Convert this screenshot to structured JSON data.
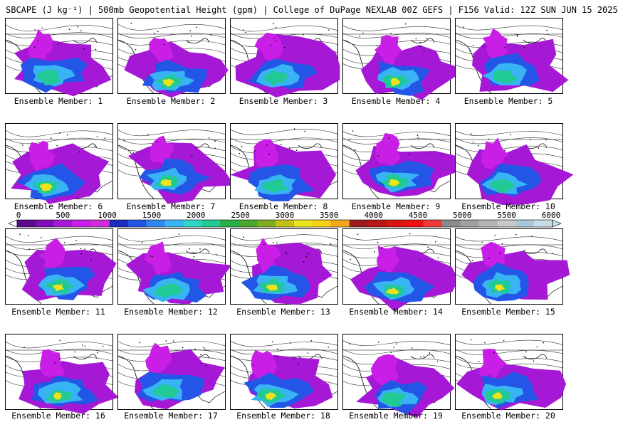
{
  "header": {
    "title": "SBCAPE (J kg⁻¹) | 500mb Geopotential Height (gpm) | College of DuPage NEXLAB 00Z GEFS | F156 Valid: 12Z SUN JUN 15 2025"
  },
  "members": [
    {
      "label": "Ensemble Member: 1"
    },
    {
      "label": "Ensemble Member: 2"
    },
    {
      "label": "Ensemble Member: 3"
    },
    {
      "label": "Ensemble Member: 4"
    },
    {
      "label": "Ensemble Member: 5"
    },
    {
      "label": "Ensemble Member: 6"
    },
    {
      "label": "Ensemble Member: 7"
    },
    {
      "label": "Ensemble Member: 8"
    },
    {
      "label": "Ensemble Member: 9"
    },
    {
      "label": "Ensemble Member: 10"
    },
    {
      "label": "Ensemble Member: 11"
    },
    {
      "label": "Ensemble Member: 12"
    },
    {
      "label": "Ensemble Member: 13"
    },
    {
      "label": "Ensemble Member: 14"
    },
    {
      "label": "Ensemble Member: 15"
    },
    {
      "label": "Ensemble Member: 16"
    },
    {
      "label": "Ensemble Member: 17"
    },
    {
      "label": "Ensemble Member: 18"
    },
    {
      "label": "Ensemble Member: 19"
    },
    {
      "label": "Ensemble Member: 20"
    }
  ],
  "colorbar": {
    "ticks": [
      "0",
      "500",
      "1000",
      "1500",
      "2000",
      "2500",
      "3000",
      "3500",
      "4000",
      "4500",
      "5000",
      "5500",
      "6000"
    ],
    "colors": [
      "#5a0a8c",
      "#7d0fb5",
      "#a418d6",
      "#c81ee6",
      "#d22cd8",
      "#1a2bbf",
      "#2356e6",
      "#2f88f0",
      "#38b4f5",
      "#2ed6c8",
      "#21c994",
      "#27b04a",
      "#4aa82a",
      "#7dad1c",
      "#c4c11a",
      "#ece31a",
      "#f7ce1a",
      "#f2a81a",
      "#9c1a1a",
      "#b81616",
      "#d91212",
      "#ee0f0f",
      "#f03a3a",
      "#8a8a8a",
      "#a0a0a0",
      "#b5b5b5",
      "#c8c8c8",
      "#a8c8d8",
      "#c8dce8"
    ]
  }
}
